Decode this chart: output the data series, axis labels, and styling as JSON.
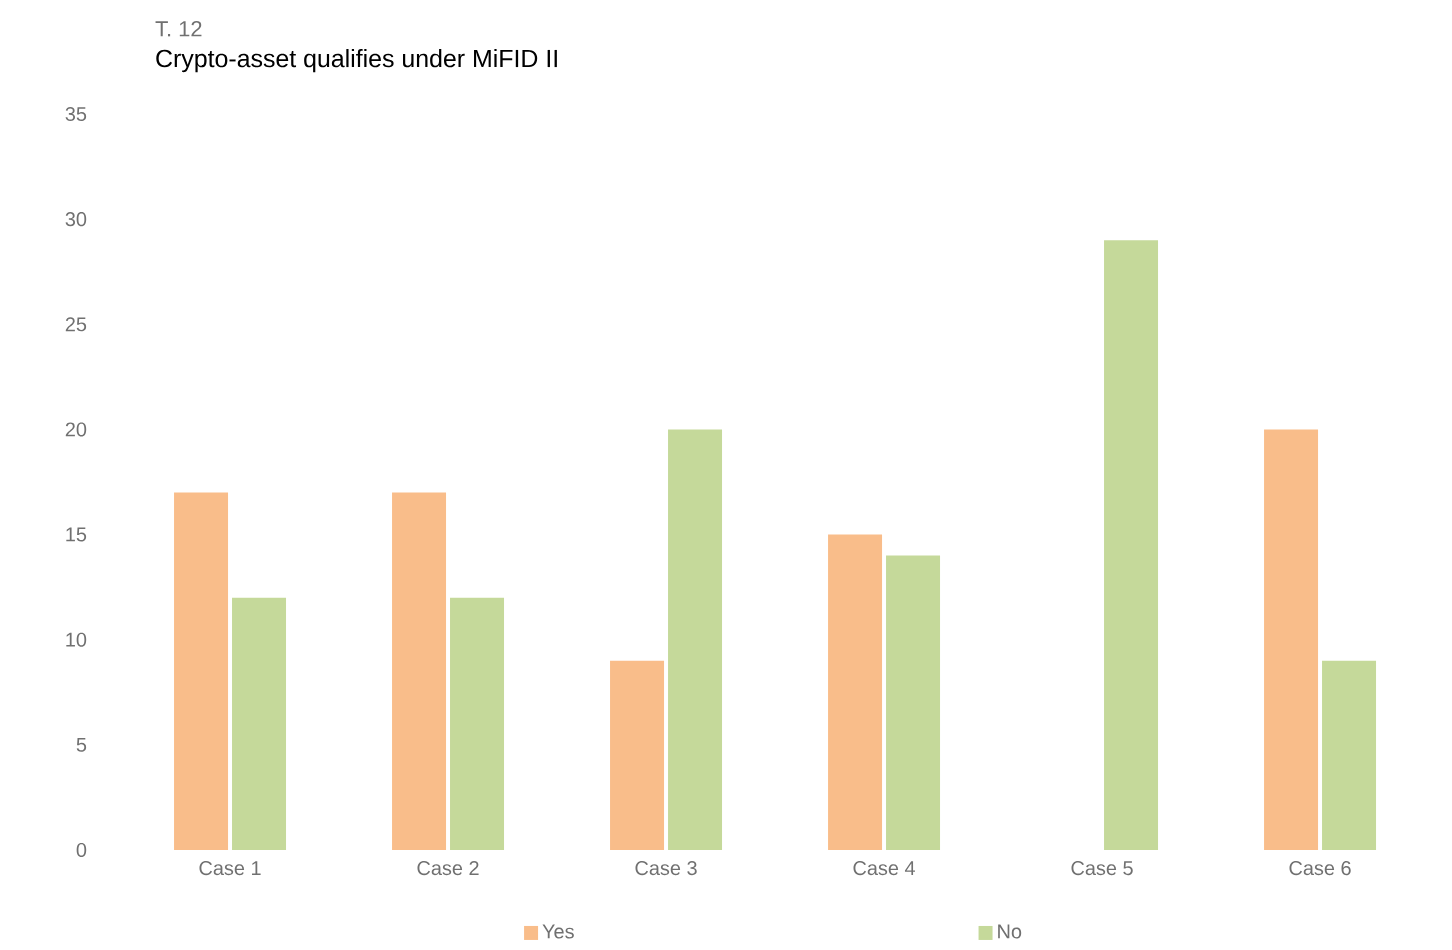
{
  "chart_data": {
    "type": "bar",
    "subtitle": "T. 12",
    "title": "Crypto-asset qualifies under MiFID II",
    "categories": [
      "Case 1",
      "Case 2",
      "Case 3",
      "Case 4",
      "Case 5",
      "Case 6"
    ],
    "series": [
      {
        "name": "Yes",
        "color": "#f9bd8a",
        "values": [
          17,
          17,
          9,
          15,
          null,
          20
        ]
      },
      {
        "name": "No",
        "color": "#c5d99a",
        "values": [
          12,
          12,
          20,
          14,
          29,
          9
        ]
      }
    ],
    "ylim": [
      0,
      35
    ],
    "yticks": [
      0,
      5,
      10,
      15,
      20,
      25,
      30,
      35
    ],
    "grid": false,
    "legend": "bottom"
  }
}
